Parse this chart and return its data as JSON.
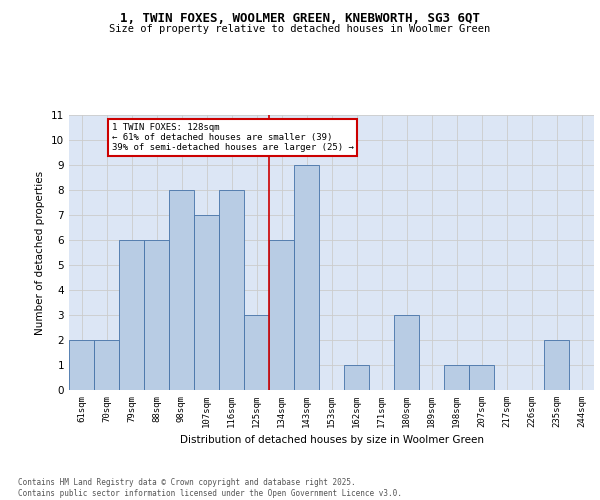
{
  "title1": "1, TWIN FOXES, WOOLMER GREEN, KNEBWORTH, SG3 6QT",
  "title2": "Size of property relative to detached houses in Woolmer Green",
  "xlabel": "Distribution of detached houses by size in Woolmer Green",
  "ylabel": "Number of detached properties",
  "categories": [
    "61sqm",
    "70sqm",
    "79sqm",
    "88sqm",
    "98sqm",
    "107sqm",
    "116sqm",
    "125sqm",
    "134sqm",
    "143sqm",
    "153sqm",
    "162sqm",
    "171sqm",
    "180sqm",
    "189sqm",
    "198sqm",
    "207sqm",
    "217sqm",
    "226sqm",
    "235sqm",
    "244sqm"
  ],
  "values": [
    2,
    2,
    6,
    6,
    8,
    7,
    8,
    3,
    6,
    9,
    0,
    1,
    0,
    3,
    0,
    1,
    1,
    0,
    0,
    2,
    0
  ],
  "bar_color": "#b8cce4",
  "bar_edge_color": "#4472a8",
  "grid_color": "#cccccc",
  "background_color": "#dce6f5",
  "redline_label": "125sqm",
  "annotation_title": "1 TWIN FOXES: 128sqm",
  "annotation_line1": "← 61% of detached houses are smaller (39)",
  "annotation_line2": "39% of semi-detached houses are larger (25) →",
  "annotation_box_color": "#ffffff",
  "annotation_box_edge": "#cc0000",
  "redline_color": "#cc0000",
  "ylim": [
    0,
    11
  ],
  "yticks": [
    0,
    1,
    2,
    3,
    4,
    5,
    6,
    7,
    8,
    9,
    10,
    11
  ],
  "footnote1": "Contains HM Land Registry data © Crown copyright and database right 2025.",
  "footnote2": "Contains public sector information licensed under the Open Government Licence v3.0."
}
